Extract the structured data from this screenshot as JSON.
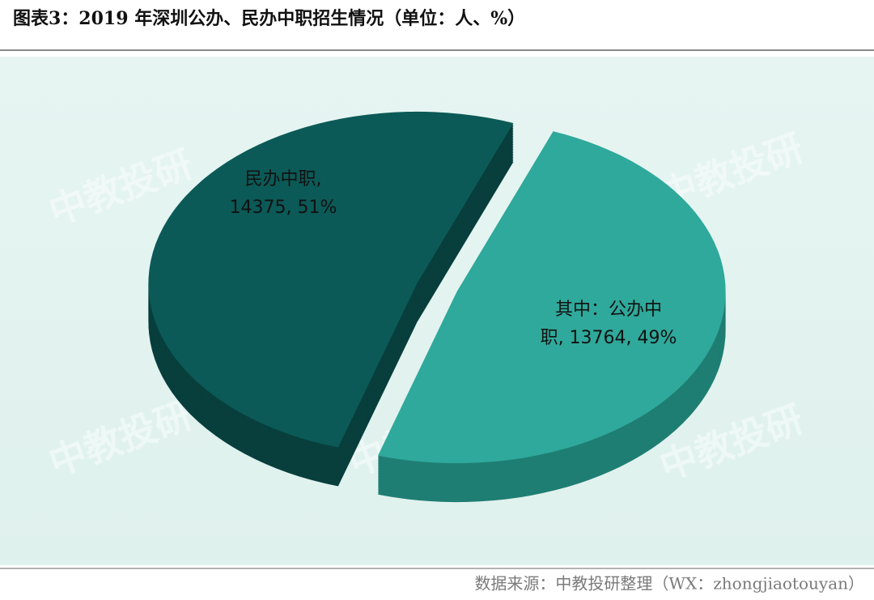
{
  "chart_data": {
    "type": "pie3d",
    "title": "图表3：2019 年深圳公办、民办中职招生情况（单位：人、%）",
    "values": [
      14375,
      13764
    ],
    "value_labels": [
      [
        "民办中职,",
        "14375, 51%"
      ],
      [
        "其中：公办中",
        "职, 13764, 49%"
      ]
    ],
    "colors": [
      "#0b5a57",
      "#2fa99b"
    ],
    "side_colors": [
      "#083f3d",
      "#1f7e73"
    ],
    "watermark": "中教投研",
    "source": "数据来源：中教投研整理（WX：zhongjiaotouyan）"
  }
}
